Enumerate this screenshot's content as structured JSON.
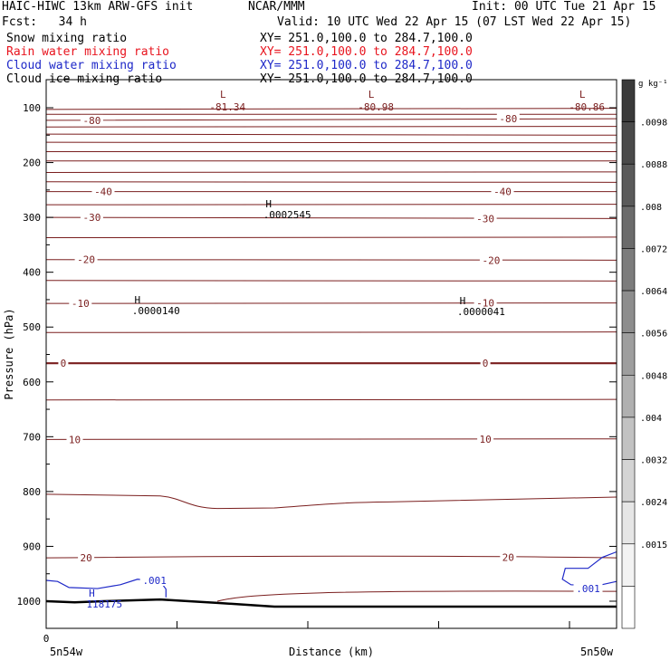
{
  "header": {
    "model": "HAIC-HIWC 13km ARW-GFS init",
    "org": "NCAR/MMM",
    "init": "Init: 00 UTC Tue 21 Apr 15",
    "fcst": "Fcst:   34 h",
    "valid": "Valid: 10 UTC Wed 22 Apr 15 (07 LST Wed 22 Apr 15)"
  },
  "fields": [
    {
      "name": "Snow mixing ratio",
      "xy": "XY= 251.0,100.0 to 284.7,100.0",
      "color": "#000000"
    },
    {
      "name": "Rain water mixing ratio",
      "xy": "XY= 251.0,100.0 to 284.7,100.0",
      "color": "#e8141e"
    },
    {
      "name": "Cloud water mixing ratio",
      "xy": "XY= 251.0,100.0 to 284.7,100.0",
      "color": "#1e28c8"
    },
    {
      "name": "Cloud ice mixing ratio",
      "xy": "XY= 251.0,100.0 to 284.7,100.0",
      "color": "#000000"
    }
  ],
  "colors": {
    "isotherm": "#7a1e1e",
    "cloud_water": "#1e28c8",
    "ground": "#000000"
  },
  "chart_data": {
    "type": "line",
    "xlabel": "Distance (km)",
    "ylabel": "Pressure (hPa)",
    "x_start_tick": "0",
    "x_left_label": "5n54w",
    "x_right_label": "5n50w",
    "yticks": [
      100,
      200,
      300,
      400,
      500,
      600,
      700,
      800,
      900,
      1000
    ],
    "ylim": [
      50,
      1055
    ],
    "colorbar": {
      "unit": "g kg⁻¹",
      "labels": [
        ".0098",
        ".0088",
        ".008",
        ".0072",
        ".0064",
        ".0056",
        ".0048",
        ".004",
        ".0032",
        ".0024",
        ".0015"
      ],
      "shades": [
        "#3a3a3a",
        "#4a4a4a",
        "#5a5a5a",
        "#6b6b6b",
        "#7c7c7c",
        "#8d8d8d",
        "#9e9e9e",
        "#b0b0b0",
        "#c2c2c2",
        "#d4d4d4",
        "#e6e6e6",
        "#f3f3f3",
        "#ffffff"
      ]
    },
    "isotherm_labels": [
      {
        "text": "-80",
        "x": 0.08,
        "p": 123
      },
      {
        "text": "-80",
        "x": 0.81,
        "p": 120
      },
      {
        "text": "-40",
        "x": 0.1,
        "p": 253
      },
      {
        "text": "-40",
        "x": 0.8,
        "p": 253
      },
      {
        "text": "-30",
        "x": 0.08,
        "p": 300
      },
      {
        "text": "-30",
        "x": 0.77,
        "p": 302
      },
      {
        "text": "-20",
        "x": 0.07,
        "p": 377
      },
      {
        "text": "-20",
        "x": 0.78,
        "p": 378
      },
      {
        "text": "-10",
        "x": 0.06,
        "p": 457
      },
      {
        "text": "-10",
        "x": 0.77,
        "p": 456
      },
      {
        "text": "0",
        "x": 0.03,
        "p": 566
      },
      {
        "text": "0",
        "x": 0.77,
        "p": 566
      },
      {
        "text": "10",
        "x": 0.05,
        "p": 705
      },
      {
        "text": "10",
        "x": 0.77,
        "p": 704
      },
      {
        "text": "20",
        "x": 0.07,
        "p": 921
      },
      {
        "text": "20",
        "x": 0.81,
        "p": 920
      }
    ],
    "lows": [
      {
        "value": "-81.34",
        "x": 0.31,
        "p": 72
      },
      {
        "value": "-80.98",
        "x": 0.57,
        "p": 72
      },
      {
        "value": "-80.86",
        "x": 0.94,
        "p": 72
      }
    ],
    "highs": [
      {
        "value": ".0002545",
        "x": 0.39,
        "p": 282
      },
      {
        "value": ".0000140",
        "x": 0.16,
        "p": 457
      },
      {
        "value": ".0000041",
        "x": 0.73,
        "p": 458
      },
      {
        "value": "118175",
        "x": 0.08,
        "p": 992
      }
    ],
    "cloud_water_labels": [
      {
        "text": ".001",
        "x": 0.19,
        "p": 962
      },
      {
        "text": ".001",
        "x": 0.95,
        "p": 977
      }
    ]
  }
}
